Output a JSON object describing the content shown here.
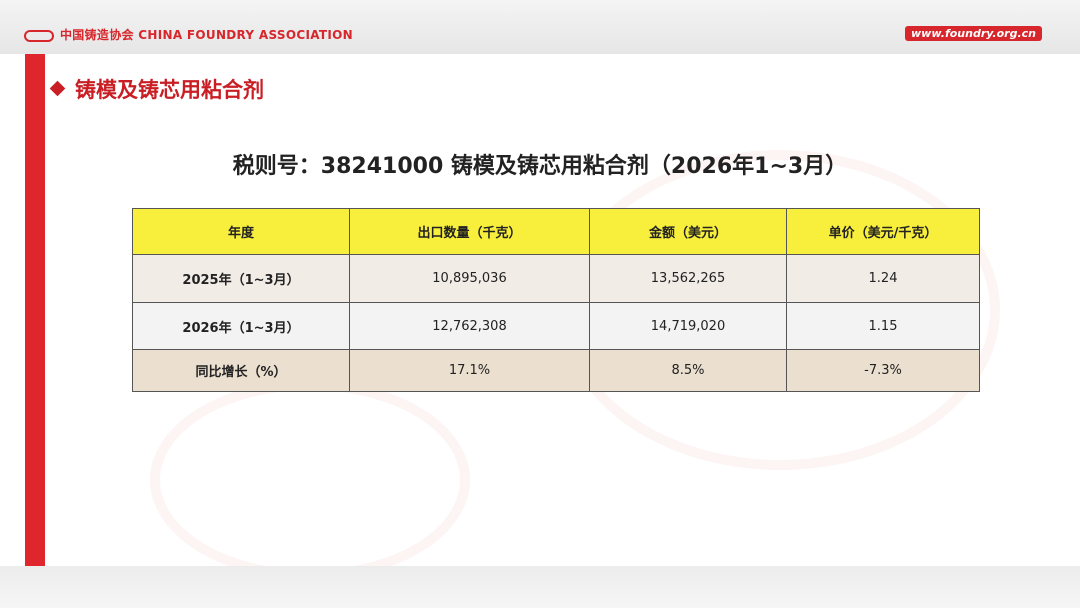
{
  "header": {
    "logo": "中国铸造协会 CHINA FOUNDRY ASSOCIATION",
    "website": "www.foundry.org.cn"
  },
  "section_title": "铸模及铸芯用粘合剂",
  "table": {
    "title": "税则号：38241000  铸模及铸芯用粘合剂（2026年1~3月）",
    "columns": [
      "年度",
      "出口数量（千克）",
      "金额（美元）",
      "单价（美元/千克）"
    ],
    "rows": [
      [
        "2025年（1~3月）",
        "10,895,036",
        "13,562,265",
        "1.24"
      ],
      [
        "2026年（1~3月）",
        "12,762,308",
        "14,719,020",
        "1.15"
      ],
      [
        "同比增长（%）",
        "17.1%",
        "8.5%",
        "-7.3%"
      ]
    ]
  }
}
